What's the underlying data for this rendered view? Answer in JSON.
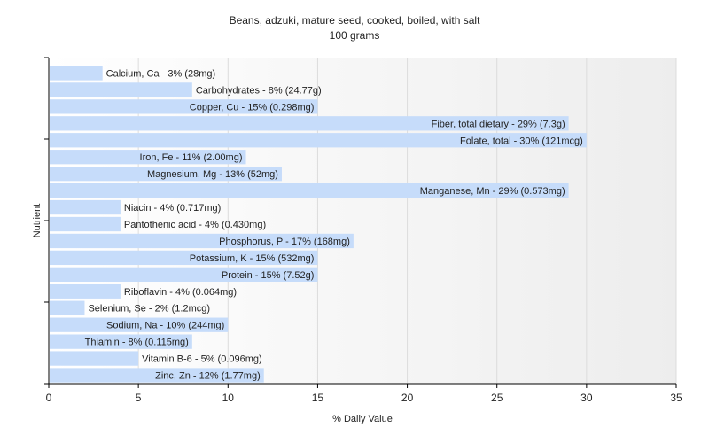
{
  "chart_data": {
    "type": "bar",
    "orientation": "horizontal",
    "title": "Beans, adzuki, mature seed, cooked, boiled, with salt",
    "subtitle": "100 grams",
    "xlabel": "% Daily Value",
    "ylabel": "Nutrient",
    "xlim": [
      0,
      35
    ],
    "xticks": [
      "0",
      "5",
      "10",
      "15",
      "20",
      "25",
      "30",
      "35"
    ],
    "grid": true,
    "bar_color": "#c6dcfa",
    "categories": [
      "Calcium, Ca",
      "Carbohydrates",
      "Copper, Cu",
      "Fiber, total dietary",
      "Folate, total",
      "Iron, Fe",
      "Magnesium, Mg",
      "Manganese, Mn",
      "Niacin",
      "Pantothenic acid",
      "Phosphorus, P",
      "Potassium, K",
      "Protein",
      "Riboflavin",
      "Selenium, Se",
      "Sodium, Na",
      "Thiamin",
      "Vitamin B-6",
      "Zinc, Zn"
    ],
    "values": [
      3,
      8,
      15,
      29,
      30,
      11,
      13,
      29,
      4,
      4,
      17,
      15,
      15,
      4,
      2,
      10,
      8,
      5,
      12
    ],
    "data_labels": [
      "Calcium, Ca - 3% (28mg)",
      "Carbohydrates - 8% (24.77g)",
      "Copper, Cu - 15% (0.298mg)",
      "Fiber, total dietary - 29% (7.3g)",
      "Folate, total - 30% (121mcg)",
      "Iron, Fe - 11% (2.00mg)",
      "Magnesium, Mg - 13% (52mg)",
      "Manganese, Mn - 29% (0.573mg)",
      "Niacin - 4% (0.717mg)",
      "Pantothenic acid - 4% (0.430mg)",
      "Phosphorus, P - 17% (168mg)",
      "Potassium, K - 15% (532mg)",
      "Protein - 15% (7.52g)",
      "Riboflavin - 4% (0.064mg)",
      "Selenium, Se - 2% (1.2mcg)",
      "Sodium, Na - 10% (244mg)",
      "Thiamin - 8% (0.115mg)",
      "Vitamin B-6 - 5% (0.096mg)",
      "Zinc, Zn - 12% (1.77mg)"
    ]
  }
}
